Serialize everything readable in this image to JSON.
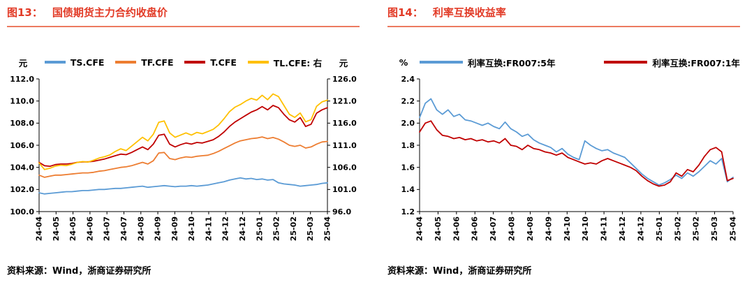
{
  "colors": {
    "title": "#e23a26",
    "rule": "#ec7a60",
    "axis": "#000000",
    "blue": "#5b9bd5",
    "orange": "#ed7d31",
    "dark_red": "#c00000",
    "yellow": "#ffc000"
  },
  "figures": {
    "fig13": {
      "title_prefix": "图13：",
      "title": "国债期货主力合约收盘价",
      "source": "资料来源：Wind，浙商证券研究所"
    },
    "fig14": {
      "title_prefix": "图14：",
      "title": "利率互换收益率",
      "source": "资料来源：Wind，浙商证券研究所"
    }
  },
  "chart_data": [
    {
      "id": "fig13",
      "type": "line",
      "title": "国债期货主力合约收盘价",
      "unit_left": "元",
      "unit_right": "元",
      "grid": false,
      "legend_position": "top",
      "x_labels": [
        "24-04",
        "24-05",
        "24-05",
        "24-06",
        "24-07",
        "24-07",
        "24-08",
        "24-09",
        "24-09",
        "24-10",
        "24-11",
        "24-12",
        "24-12",
        "25-01",
        "25-02",
        "25-02",
        "25-03",
        "25-04"
      ],
      "y_left": {
        "min": 100,
        "max": 112,
        "ticks": [
          "100.0",
          "102.0",
          "104.0",
          "106.0",
          "108.0",
          "110.0",
          "112.0"
        ]
      },
      "y_right": {
        "min": 96,
        "max": 126,
        "ticks": [
          "96.0",
          "101.0",
          "106.0",
          "111.0",
          "116.0",
          "121.0",
          "126.0"
        ]
      },
      "series": [
        {
          "name": "TS.CFE",
          "color": "#5b9bd5",
          "axis": "left",
          "values": [
            101.7,
            101.6,
            101.65,
            101.7,
            101.75,
            101.8,
            101.8,
            101.85,
            101.9,
            101.9,
            101.95,
            102.0,
            102.0,
            102.05,
            102.1,
            102.1,
            102.15,
            102.2,
            102.25,
            102.3,
            102.2,
            102.25,
            102.3,
            102.35,
            102.3,
            102.25,
            102.3,
            102.3,
            102.35,
            102.3,
            102.35,
            102.4,
            102.5,
            102.6,
            102.7,
            102.85,
            102.95,
            103.05,
            102.95,
            103.0,
            102.9,
            102.95,
            102.85,
            102.9,
            102.6,
            102.5,
            102.45,
            102.4,
            102.3,
            102.35,
            102.4,
            102.45,
            102.55,
            102.6
          ]
        },
        {
          "name": "TF.CFE",
          "color": "#ed7d31",
          "axis": "left",
          "values": [
            103.3,
            103.1,
            103.2,
            103.3,
            103.3,
            103.35,
            103.4,
            103.45,
            103.5,
            103.5,
            103.55,
            103.65,
            103.7,
            103.8,
            103.9,
            104.0,
            104.05,
            104.15,
            104.3,
            104.45,
            104.3,
            104.6,
            105.3,
            105.35,
            104.8,
            104.7,
            104.85,
            104.95,
            104.9,
            105.0,
            105.05,
            105.1,
            105.25,
            105.45,
            105.7,
            105.95,
            106.2,
            106.4,
            106.5,
            106.6,
            106.65,
            106.75,
            106.6,
            106.7,
            106.55,
            106.3,
            106.0,
            105.9,
            106.0,
            105.75,
            105.85,
            106.1,
            106.3,
            106.35
          ]
        },
        {
          "name": "T.CFE",
          "color": "#c00000",
          "axis": "left",
          "values": [
            104.45,
            104.15,
            104.1,
            104.25,
            104.3,
            104.3,
            104.35,
            104.45,
            104.5,
            104.5,
            104.55,
            104.65,
            104.75,
            104.9,
            105.05,
            105.2,
            105.15,
            105.35,
            105.6,
            105.85,
            105.6,
            106.1,
            106.9,
            107.0,
            106.1,
            105.85,
            106.05,
            106.2,
            106.1,
            106.25,
            106.2,
            106.35,
            106.5,
            106.8,
            107.2,
            107.7,
            108.1,
            108.4,
            108.7,
            109.0,
            109.2,
            109.5,
            109.2,
            109.6,
            109.4,
            108.8,
            108.3,
            108.1,
            108.5,
            107.7,
            107.9,
            108.9,
            109.2,
            109.4
          ]
        },
        {
          "name": "TL.CFE: 右",
          "color": "#ffc000",
          "axis": "right",
          "values": [
            107.0,
            105.5,
            105.8,
            106.3,
            106.5,
            106.4,
            106.7,
            107.1,
            107.3,
            107.2,
            107.6,
            108.1,
            108.4,
            108.8,
            109.6,
            110.2,
            109.8,
            110.8,
            111.8,
            112.8,
            112.0,
            113.5,
            116.2,
            116.5,
            113.8,
            112.8,
            113.3,
            113.8,
            113.3,
            113.9,
            113.6,
            114.1,
            114.6,
            115.6,
            117.0,
            118.6,
            119.6,
            120.2,
            121.0,
            121.6,
            121.2,
            122.3,
            121.3,
            122.6,
            122.0,
            120.0,
            118.0,
            117.3,
            118.3,
            116.3,
            116.8,
            119.8,
            120.8,
            121.2
          ]
        }
      ]
    },
    {
      "id": "fig14",
      "type": "line",
      "title": "利率互换收益率",
      "unit_left": "%",
      "grid": false,
      "legend_position": "top",
      "x_labels": [
        "24-04",
        "24-05",
        "24-06",
        "24-06",
        "24-07",
        "24-08",
        "24-08",
        "24-09",
        "24-10",
        "24-10",
        "24-11",
        "24-12",
        "24-12",
        "25-01",
        "25-02",
        "25-02",
        "25-03",
        "25-04"
      ],
      "y_left": {
        "min": 1.2,
        "max": 2.4,
        "ticks": [
          "1.2",
          "1.4",
          "1.6",
          "1.8",
          "2.0",
          "2.2",
          "2.4"
        ]
      },
      "series": [
        {
          "name": "利率互换:FR007:5年",
          "color": "#5b9bd5",
          "axis": "left",
          "values": [
            2.05,
            2.18,
            2.22,
            2.12,
            2.08,
            2.12,
            2.06,
            2.08,
            2.03,
            2.02,
            2.0,
            1.98,
            2.0,
            1.97,
            1.95,
            2.01,
            1.95,
            1.92,
            1.88,
            1.9,
            1.85,
            1.82,
            1.8,
            1.78,
            1.74,
            1.77,
            1.72,
            1.69,
            1.67,
            1.84,
            1.8,
            1.77,
            1.75,
            1.76,
            1.73,
            1.71,
            1.69,
            1.64,
            1.59,
            1.54,
            1.5,
            1.47,
            1.44,
            1.46,
            1.49,
            1.53,
            1.5,
            1.55,
            1.52,
            1.56,
            1.61,
            1.66,
            1.63,
            1.68,
            1.47,
            1.51
          ]
        },
        {
          "name": "利率互换:FR007:1年",
          "color": "#c00000",
          "axis": "left",
          "values": [
            1.92,
            2.0,
            2.02,
            1.94,
            1.89,
            1.88,
            1.86,
            1.87,
            1.85,
            1.86,
            1.84,
            1.85,
            1.83,
            1.84,
            1.82,
            1.86,
            1.8,
            1.79,
            1.76,
            1.8,
            1.77,
            1.76,
            1.74,
            1.73,
            1.71,
            1.73,
            1.69,
            1.67,
            1.65,
            1.63,
            1.64,
            1.63,
            1.66,
            1.68,
            1.66,
            1.64,
            1.62,
            1.6,
            1.57,
            1.52,
            1.48,
            1.45,
            1.43,
            1.44,
            1.47,
            1.55,
            1.52,
            1.58,
            1.56,
            1.62,
            1.7,
            1.76,
            1.78,
            1.74,
            1.48,
            1.5
          ]
        }
      ]
    }
  ]
}
